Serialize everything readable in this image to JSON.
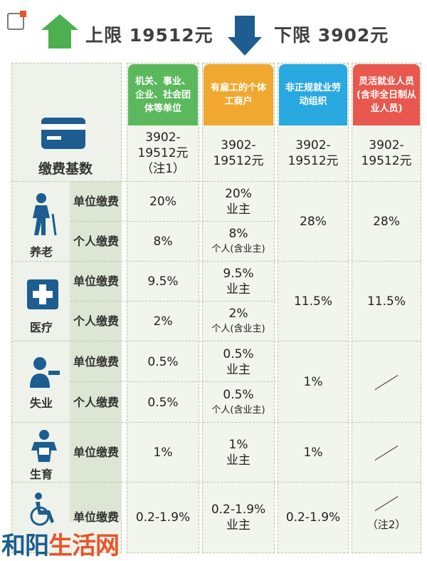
{
  "header": {
    "upper_label": "上限 19512元",
    "lower_label": "下限 3902元"
  },
  "columns": [
    {
      "label": "机关、事业、企业、社会团体等单位",
      "color": "#5cb85c"
    },
    {
      "label": "有雇工的个体工商户",
      "color": "#f0a830"
    },
    {
      "label": "非正规就业劳动组织",
      "color": "#2aa8e0"
    },
    {
      "label": "灵活就业人员(含非全日制从业人员)",
      "color": "#e8584e"
    }
  ],
  "base": {
    "label": "缴费基数",
    "values": [
      "3902-19512元（注1）",
      "3902-19512元",
      "3902-19512元",
      "3902-19512元"
    ]
  },
  "sections": {
    "pension": {
      "name": "养老",
      "unit_label": "单位缴费",
      "person_label": "个人缴费",
      "c1_unit": "20%",
      "c1_person": "8%",
      "c2_unit": "20%",
      "c2_unit_sub": "业主",
      "c2_person": "8%",
      "c2_person_sub": "个人(含业主)",
      "c3": "28%",
      "c4": "28%"
    },
    "medical": {
      "name": "医疗",
      "unit_label": "单位缴费",
      "person_label": "个人缴费",
      "c1_unit": "9.5%",
      "c1_person": "2%",
      "c2_unit": "9.5%",
      "c2_unit_sub": "业主",
      "c2_person": "2%",
      "c2_person_sub": "个人(含业主)",
      "c3": "11.5%",
      "c4": "11.5%"
    },
    "unemployment": {
      "name": "失业",
      "unit_label": "单位缴费",
      "person_label": "个人缴费",
      "c1_unit": "0.5%",
      "c1_person": "0.5%",
      "c2_unit": "0.5%",
      "c2_unit_sub": "业主",
      "c2_person": "0.5%",
      "c2_person_sub": "个人(含业主)",
      "c3": "1%"
    },
    "maternity": {
      "name": "生育",
      "unit_label": "单位缴费",
      "c1": "1%",
      "c2": "1%",
      "c2_sub": "业主",
      "c3": "1%"
    },
    "injury": {
      "unit_label": "单位缴费",
      "c1": "0.2-1.9%",
      "c2": "0.2-1.9%",
      "c2_sub": "业主",
      "c3": "0.2-1.9%",
      "c4_note": "（注2）"
    }
  },
  "watermark": {
    "text1": "和阳",
    "text2": "生活网",
    "color1": "#1d5d8f",
    "color2": "#e8542a"
  },
  "icons": [
    "corner-badge-icon",
    "up-arrow-icon",
    "down-arrow-icon",
    "card-icon",
    "elderly-person-icon",
    "medical-cross-icon",
    "worker-icon",
    "baby-icon",
    "wheelchair-icon"
  ]
}
